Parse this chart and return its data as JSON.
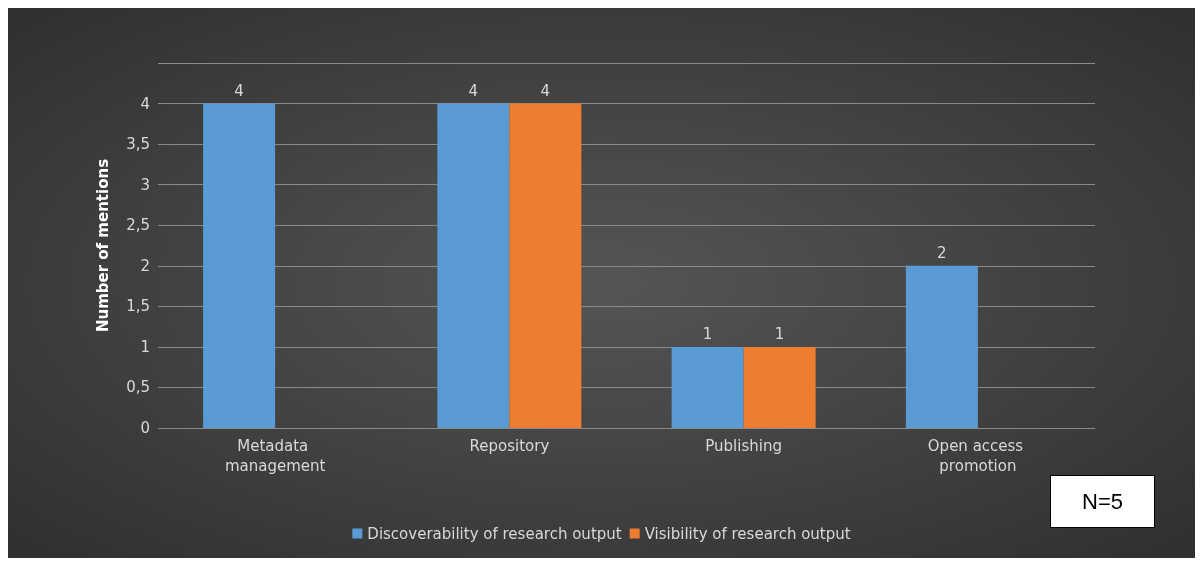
{
  "chart_data": {
    "type": "bar",
    "ylabel": "Number of mentions",
    "categories": [
      "Metadata management",
      "Repository",
      "Publishing",
      "Open access promotion"
    ],
    "series": [
      {
        "name": "Discoverability of research output",
        "color": "#5b9bd5",
        "values": [
          4,
          4,
          1,
          2
        ]
      },
      {
        "name": "Visibility of research output",
        "color": "#ed7d31",
        "values": [
          null,
          4,
          1,
          null
        ]
      }
    ],
    "ylim": [
      0,
      4.5
    ],
    "yticks": [
      0,
      {
        "value": 0.5,
        "label": "0,5"
      },
      1,
      {
        "value": 1.5,
        "label": "1,5"
      },
      2,
      {
        "value": 2.5,
        "label": "2,5"
      },
      3,
      {
        "value": 3.5,
        "label": "3,5"
      },
      4,
      {
        "value": 4.5,
        "label": null
      }
    ],
    "grid": "y",
    "legend": "bottom",
    "data_labels": true,
    "annotations": [
      "N=5"
    ]
  }
}
